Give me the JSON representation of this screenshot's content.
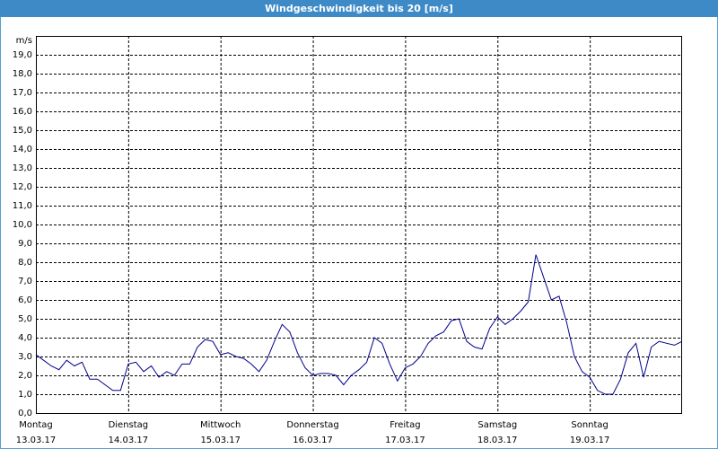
{
  "chart_data": {
    "type": "line",
    "title": "Windgeschwindigkeit bis 20 [m/s]",
    "y_unit": "m/s",
    "xlim": [
      0,
      7
    ],
    "xticks": [
      {
        "value": 0,
        "label": "Montag",
        "date": "13.03.17"
      },
      {
        "value": 1,
        "label": "Dienstag",
        "date": "14.03.17"
      },
      {
        "value": 2,
        "label": "Mittwoch",
        "date": "15.03.17"
      },
      {
        "value": 3,
        "label": "Donnerstag",
        "date": "16.03.17"
      },
      {
        "value": 4,
        "label": "Freitag",
        "date": "17.03.17"
      },
      {
        "value": 5,
        "label": "Samstag",
        "date": "18.03.17"
      },
      {
        "value": 6,
        "label": "Sonntag",
        "date": "19.03.17"
      }
    ],
    "ylim": [
      0,
      20
    ],
    "yticks": [
      {
        "value": 0,
        "label": "0,0"
      },
      {
        "value": 1,
        "label": "1,0"
      },
      {
        "value": 2,
        "label": "2,0"
      },
      {
        "value": 3,
        "label": "3,0"
      },
      {
        "value": 4,
        "label": "4,0"
      },
      {
        "value": 5,
        "label": "5,0"
      },
      {
        "value": 6,
        "label": "6,0"
      },
      {
        "value": 7,
        "label": "7,0"
      },
      {
        "value": 8,
        "label": "8,0"
      },
      {
        "value": 9,
        "label": "9,0"
      },
      {
        "value": 10,
        "label": "10,0"
      },
      {
        "value": 11,
        "label": "11,0"
      },
      {
        "value": 12,
        "label": "12,0"
      },
      {
        "value": 13,
        "label": "13,0"
      },
      {
        "value": 14,
        "label": "14,0"
      },
      {
        "value": 15,
        "label": "15,0"
      },
      {
        "value": 16,
        "label": "16,0"
      },
      {
        "value": 17,
        "label": "17,0"
      },
      {
        "value": 18,
        "label": "18,0"
      },
      {
        "value": 19,
        "label": "19,0"
      }
    ],
    "grid": true,
    "series": [
      {
        "color": "#00008b",
        "values": [
          3.1,
          2.8,
          2.5,
          2.3,
          2.8,
          2.5,
          2.7,
          1.8,
          1.8,
          1.5,
          1.2,
          1.2,
          2.6,
          2.7,
          2.2,
          2.5,
          1.9,
          2.2,
          2.0,
          2.6,
          2.6,
          3.5,
          3.9,
          3.8,
          3.1,
          3.2,
          3.0,
          2.9,
          2.6,
          2.2,
          2.8,
          3.8,
          4.7,
          4.3,
          3.2,
          2.4,
          2.0,
          2.1,
          2.1,
          2.0,
          1.5,
          2.0,
          2.3,
          2.7,
          4.0,
          3.7,
          2.6,
          1.7,
          2.4,
          2.6,
          3.0,
          3.7,
          4.1,
          4.3,
          4.9,
          5.0,
          3.8,
          3.5,
          3.4,
          4.5,
          5.1,
          4.7,
          5.0,
          5.4,
          5.9,
          8.4,
          7.2,
          6.0,
          6.2,
          4.8,
          3.0,
          2.2,
          1.9,
          1.2,
          1.0,
          1.0,
          1.8,
          3.2,
          3.7,
          1.9,
          3.5,
          3.8,
          3.7,
          3.6,
          3.8
        ]
      }
    ]
  }
}
